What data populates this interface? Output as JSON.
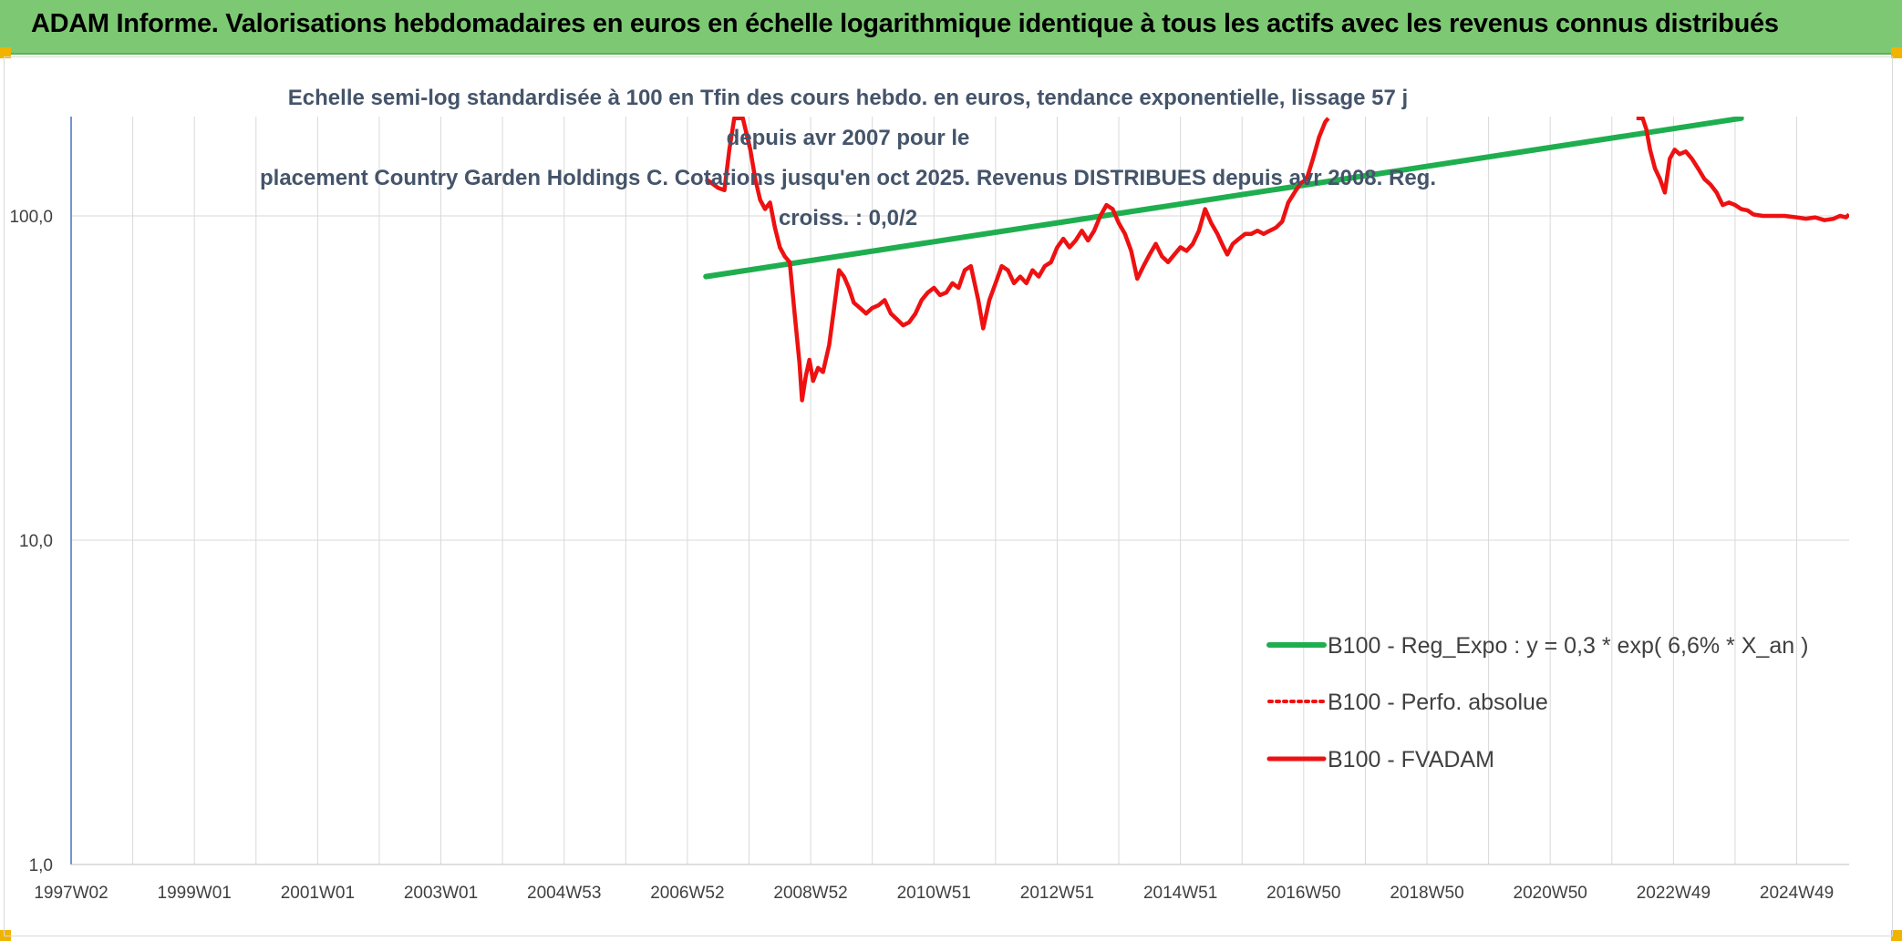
{
  "banner": {
    "title": "ADAM Informe. Valorisations hebdomadaires en euros en échelle logarithmique identique à tous les actifs avec les revenus connus distribués"
  },
  "colors": {
    "banner_bg": "#7dc873",
    "regression": "#1fae4f",
    "fvadam": "#ee1111",
    "perfo": "#ee1111",
    "grid": "#d9d9d9",
    "axis_text": "#404040"
  },
  "chart_data": {
    "type": "line",
    "title": "Echelle semi-log standardisée à 100 en Tfin des cours hebdo. en euros, tendance exponentielle, lissage 57 j depuis avr 2007 pour le placement Country Garden Holdings C. Cotations jusqu'en oct 2025. Revenus DISTRIBUES depuis avr 2008. Reg. croiss. : 0,0/2",
    "title_lines": [
      "Echelle semi-log standardisée à 100 en Tfin des cours hebdo. en euros, tendance exponentielle, lissage 57 j depuis avr 2007 pour le",
      "placement Country Garden Holdings C. Cotations jusqu'en oct 2025. Revenus DISTRIBUES depuis avr 2008. Reg. croiss. : 0,0/2"
    ],
    "y_scale": "log",
    "ylim": [
      1,
      200
    ],
    "xlim": [
      1997.0,
      2025.85
    ],
    "y_ticks": [
      {
        "value": 100,
        "label": "100,0"
      },
      {
        "value": 10,
        "label": "10,0"
      },
      {
        "value": 1,
        "label": "1,0"
      }
    ],
    "x_ticks": [
      {
        "value": 1997.0,
        "label": "1997W02"
      },
      {
        "value": 1999.0,
        "label": "1999W01"
      },
      {
        "value": 2001.0,
        "label": "2001W01"
      },
      {
        "value": 2003.0,
        "label": "2003W01"
      },
      {
        "value": 2005.0,
        "label": "2004W53"
      },
      {
        "value": 2007.0,
        "label": "2006W52"
      },
      {
        "value": 2009.0,
        "label": "2008W52"
      },
      {
        "value": 2011.0,
        "label": "2010W51"
      },
      {
        "value": 2013.0,
        "label": "2012W51"
      },
      {
        "value": 2015.0,
        "label": "2014W51"
      },
      {
        "value": 2017.0,
        "label": "2016W50"
      },
      {
        "value": 2019.0,
        "label": "2018W50"
      },
      {
        "value": 2021.0,
        "label": "2020W50"
      },
      {
        "value": 2023.0,
        "label": "2022W49"
      },
      {
        "value": 2025.0,
        "label": "2024W49"
      }
    ],
    "legend_position": "bottom-right",
    "series": [
      {
        "name": "B100 - Reg_Expo : y = 0,3 * exp( 6,6% *  X_an )",
        "style": "solid-thick",
        "points": [
          [
            2007.3,
            65
          ],
          [
            2024.1,
            200
          ]
        ]
      },
      {
        "name": "B100 - Perfo. absolue",
        "style": "dotted",
        "points": []
      },
      {
        "name": "B100 - FVADAM",
        "style": "solid",
        "points": [
          [
            2007.3,
            130
          ],
          [
            2007.5,
            122
          ],
          [
            2007.6,
            120
          ],
          [
            2007.68,
            160
          ],
          [
            2007.76,
            200
          ],
          [
            2007.9,
            200
          ],
          [
            2008.02,
            160
          ],
          [
            2008.1,
            130
          ],
          [
            2008.18,
            112
          ],
          [
            2008.26,
            105
          ],
          [
            2008.34,
            110
          ],
          [
            2008.42,
            92
          ],
          [
            2008.5,
            80
          ],
          [
            2008.58,
            75
          ],
          [
            2008.66,
            72
          ],
          [
            2008.74,
            50
          ],
          [
            2008.82,
            35
          ],
          [
            2008.86,
            27
          ],
          [
            2008.92,
            32
          ],
          [
            2008.98,
            36
          ],
          [
            2009.04,
            31
          ],
          [
            2009.12,
            34
          ],
          [
            2009.2,
            33
          ],
          [
            2009.3,
            40
          ],
          [
            2009.38,
            52
          ],
          [
            2009.46,
            68
          ],
          [
            2009.54,
            65
          ],
          [
            2009.62,
            60
          ],
          [
            2009.7,
            54
          ],
          [
            2009.8,
            52
          ],
          [
            2009.9,
            50
          ],
          [
            2010.0,
            52
          ],
          [
            2010.1,
            53
          ],
          [
            2010.2,
            55
          ],
          [
            2010.3,
            50
          ],
          [
            2010.4,
            48
          ],
          [
            2010.5,
            46
          ],
          [
            2010.6,
            47
          ],
          [
            2010.7,
            50
          ],
          [
            2010.8,
            55
          ],
          [
            2010.9,
            58
          ],
          [
            2011.0,
            60
          ],
          [
            2011.1,
            57
          ],
          [
            2011.2,
            58
          ],
          [
            2011.3,
            62
          ],
          [
            2011.4,
            60
          ],
          [
            2011.5,
            68
          ],
          [
            2011.6,
            70
          ],
          [
            2011.72,
            55
          ],
          [
            2011.8,
            45
          ],
          [
            2011.9,
            55
          ],
          [
            2012.0,
            62
          ],
          [
            2012.1,
            70
          ],
          [
            2012.2,
            68
          ],
          [
            2012.3,
            62
          ],
          [
            2012.4,
            65
          ],
          [
            2012.5,
            62
          ],
          [
            2012.6,
            68
          ],
          [
            2012.7,
            65
          ],
          [
            2012.8,
            70
          ],
          [
            2012.9,
            72
          ],
          [
            2013.0,
            80
          ],
          [
            2013.1,
            85
          ],
          [
            2013.2,
            80
          ],
          [
            2013.3,
            84
          ],
          [
            2013.4,
            90
          ],
          [
            2013.5,
            84
          ],
          [
            2013.6,
            90
          ],
          [
            2013.7,
            100
          ],
          [
            2013.8,
            108
          ],
          [
            2013.9,
            105
          ],
          [
            2014.0,
            95
          ],
          [
            2014.1,
            88
          ],
          [
            2014.2,
            78
          ],
          [
            2014.3,
            64
          ],
          [
            2014.4,
            70
          ],
          [
            2014.5,
            76
          ],
          [
            2014.6,
            82
          ],
          [
            2014.7,
            75
          ],
          [
            2014.8,
            72
          ],
          [
            2014.9,
            76
          ],
          [
            2015.0,
            80
          ],
          [
            2015.1,
            78
          ],
          [
            2015.2,
            82
          ],
          [
            2015.3,
            90
          ],
          [
            2015.4,
            105
          ],
          [
            2015.5,
            95
          ],
          [
            2015.6,
            88
          ],
          [
            2015.7,
            80
          ],
          [
            2015.76,
            76
          ],
          [
            2015.85,
            82
          ],
          [
            2015.95,
            85
          ],
          [
            2016.05,
            88
          ],
          [
            2016.15,
            88
          ],
          [
            2016.25,
            90
          ],
          [
            2016.35,
            88
          ],
          [
            2016.45,
            90
          ],
          [
            2016.55,
            92
          ],
          [
            2016.65,
            96
          ],
          [
            2016.75,
            110
          ],
          [
            2016.85,
            118
          ],
          [
            2016.95,
            126
          ],
          [
            2017.05,
            130
          ],
          [
            2017.15,
            150
          ],
          [
            2017.25,
            175
          ],
          [
            2017.35,
            195
          ],
          [
            2017.4,
            200
          ],
          null,
          [
            2022.4,
            200
          ],
          [
            2022.5,
            200
          ],
          [
            2022.56,
            185
          ],
          [
            2022.62,
            160
          ],
          [
            2022.7,
            140
          ],
          [
            2022.78,
            130
          ],
          [
            2022.86,
            118
          ],
          [
            2022.94,
            150
          ],
          [
            2023.02,
            160
          ],
          [
            2023.1,
            155
          ],
          [
            2023.2,
            158
          ],
          [
            2023.3,
            150
          ],
          [
            2023.4,
            140
          ],
          [
            2023.5,
            130
          ],
          [
            2023.6,
            125
          ],
          [
            2023.7,
            118
          ],
          [
            2023.8,
            108
          ],
          [
            2023.9,
            110
          ],
          [
            2024.0,
            108
          ],
          [
            2024.1,
            105
          ],
          [
            2024.2,
            104
          ],
          [
            2024.3,
            101
          ],
          [
            2024.45,
            100
          ],
          [
            2024.6,
            100
          ],
          [
            2024.8,
            100
          ],
          [
            2025.0,
            99
          ],
          [
            2025.15,
            98
          ],
          [
            2025.3,
            99
          ],
          [
            2025.45,
            97
          ],
          [
            2025.6,
            98
          ],
          [
            2025.7,
            100
          ],
          [
            2025.8,
            99
          ],
          [
            2025.85,
            101
          ]
        ]
      }
    ]
  }
}
